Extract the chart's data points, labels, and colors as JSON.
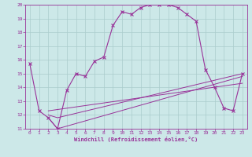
{
  "xlabel": "Windchill (Refroidissement éolien,°C)",
  "bg_color": "#cce8e8",
  "grid_color": "#aacccc",
  "line_color": "#993399",
  "xlim": [
    -0.5,
    23.5
  ],
  "ylim": [
    11,
    20
  ],
  "xticks": [
    0,
    1,
    2,
    3,
    4,
    5,
    6,
    7,
    8,
    9,
    10,
    11,
    12,
    13,
    14,
    15,
    16,
    17,
    18,
    19,
    20,
    21,
    22,
    23
  ],
  "yticks": [
    11,
    12,
    13,
    14,
    15,
    16,
    17,
    18,
    19,
    20
  ],
  "curve1_x": [
    0,
    1,
    2,
    3,
    4,
    5,
    6,
    7,
    8,
    9,
    10,
    11,
    12,
    13,
    14,
    15,
    16,
    17,
    18,
    19,
    20,
    21,
    22,
    23
  ],
  "curve1_y": [
    15.7,
    12.3,
    11.8,
    11.0,
    13.8,
    15.0,
    14.8,
    15.9,
    16.2,
    18.5,
    19.5,
    19.3,
    19.8,
    20.0,
    20.0,
    20.0,
    19.8,
    19.3,
    18.8,
    15.3,
    14.0,
    12.5,
    12.3,
    15.0
  ],
  "curve2_x": [
    2,
    3,
    23
  ],
  "curve2_y": [
    11.8,
    11.0,
    14.8
  ],
  "curve3_x": [
    2,
    3,
    23
  ],
  "curve3_y": [
    12.0,
    11.8,
    15.0
  ],
  "curve4_x": [
    2,
    23
  ],
  "curve4_y": [
    12.3,
    14.3
  ]
}
